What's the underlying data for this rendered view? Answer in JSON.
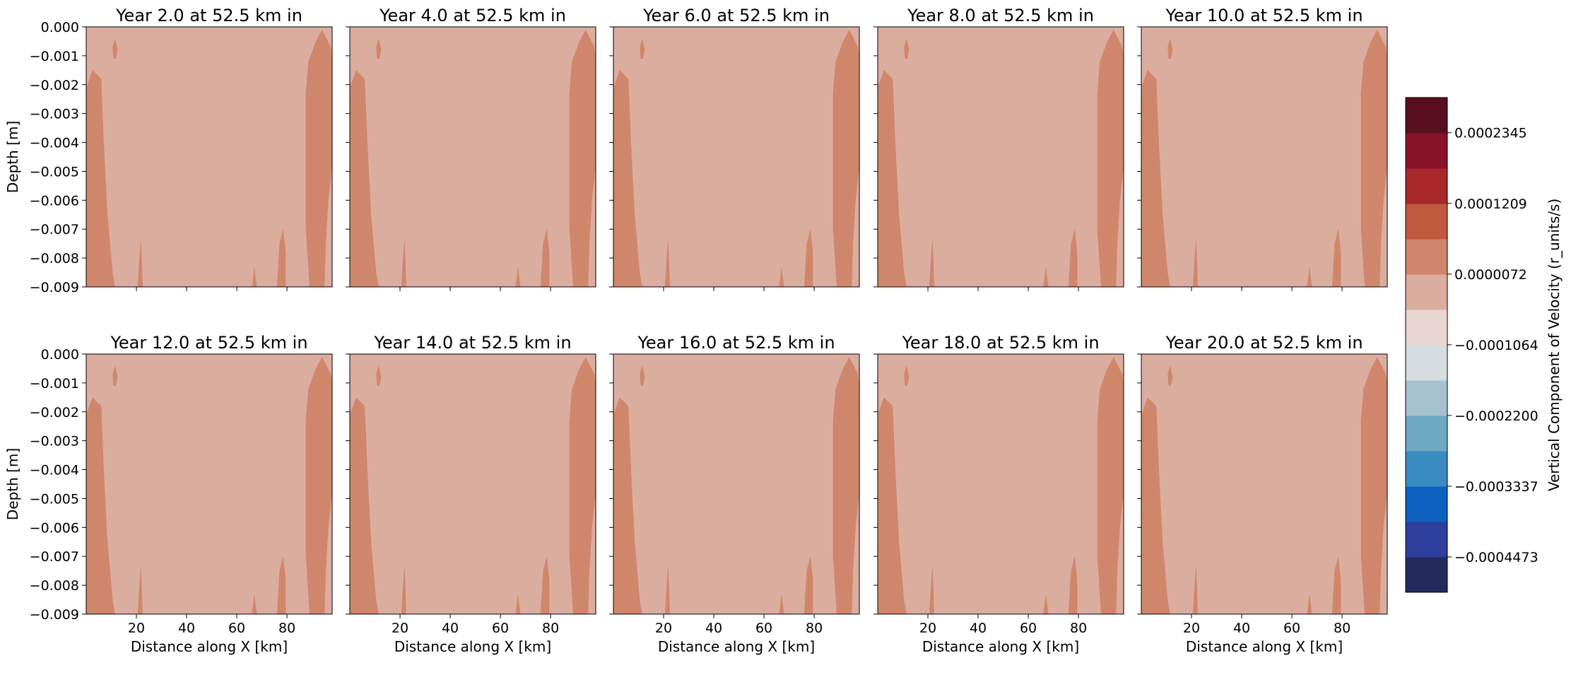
{
  "chart_data": {
    "type": "contourf",
    "panels": [
      {
        "title": "Year 2.0 at 52.5 km in"
      },
      {
        "title": "Year 4.0 at 52.5 km in"
      },
      {
        "title": "Year 6.0 at 52.5 km in"
      },
      {
        "title": "Year 8.0 at 52.5 km in"
      },
      {
        "title": "Year 10.0 at 52.5 km in"
      },
      {
        "title": "Year 12.0 at 52.5 km in"
      },
      {
        "title": "Year 14.0 at 52.5 km in"
      },
      {
        "title": "Year 16.0 at 52.5 km in"
      },
      {
        "title": "Year 18.0 at 52.5 km in"
      },
      {
        "title": "Year 20.0 at 52.5 km in"
      }
    ],
    "xlabel": "Distance along X [km]",
    "ylabel": "Depth [m]",
    "xlim": [
      0,
      98
    ],
    "ylim": [
      -0.009,
      0.0
    ],
    "xticks": [
      20,
      40,
      60,
      80
    ],
    "yticks": [
      0.0,
      -0.001,
      -0.002,
      -0.003,
      -0.004,
      -0.005,
      -0.006,
      -0.007,
      -0.008,
      -0.009
    ],
    "ytick_labels": [
      "0.000",
      "−0.001",
      "−0.002",
      "−0.003",
      "−0.004",
      "−0.005",
      "−0.006",
      "−0.007",
      "−0.008",
      "−0.009"
    ],
    "xtick_labels": [
      "20",
      "40",
      "60",
      "80"
    ],
    "background_level_color": "#dbad9f",
    "feature_level_color": "#d0866b",
    "colorbar": {
      "label": "Vertical Component of Velocity (r_units/s)",
      "range": [
        -0.000504,
        0.000291
      ],
      "levels_colors": [
        "#222a5e",
        "#2d3e9c",
        "#0b61bd",
        "#3a8bc1",
        "#6ea8c2",
        "#a6c1cf",
        "#d6dcdf",
        "#e9d6d2",
        "#dbad9f",
        "#d0866b",
        "#bf5a3e",
        "#a8282a",
        "#871429",
        "#5a0f20"
      ],
      "tick_values": [
        0.0002345,
        0.0001209,
        7.2e-06,
        -0.0001064,
        -0.00022,
        -0.0003337,
        -0.0004473
      ],
      "tick_labels": [
        "0.0002345",
        "0.0001209",
        "0.0000072",
        "−0.0001064",
        "−0.0002200",
        "−0.0003337",
        "−0.0004473"
      ]
    }
  }
}
